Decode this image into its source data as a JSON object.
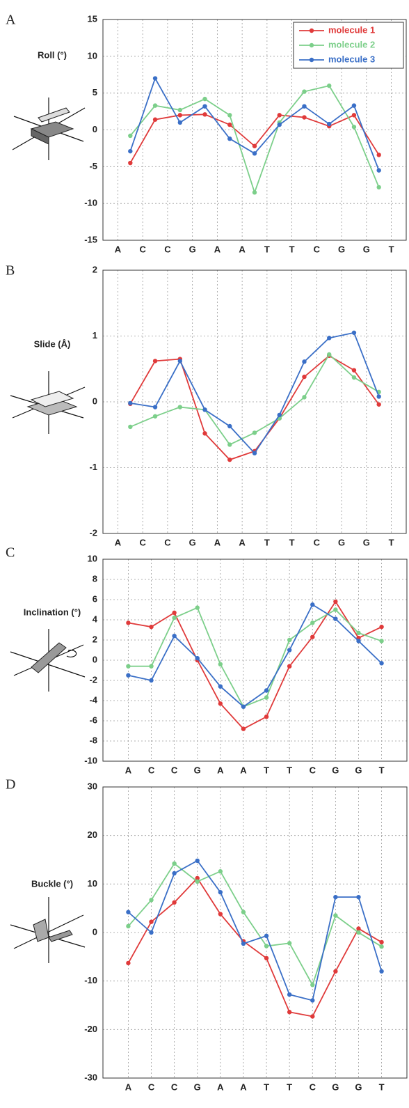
{
  "chart_data": [
    {
      "type": "line",
      "panel_label": "A",
      "ylabel": "Roll (°)",
      "x": [
        0.5,
        1.5,
        2.5,
        3.5,
        4.5,
        5.5,
        6.5,
        7.5,
        8.5,
        9.5,
        10.5
      ],
      "xticks": [
        {
          "value": 0,
          "label": "A"
        },
        {
          "value": 1,
          "label": "C"
        },
        {
          "value": 2,
          "label": "C"
        },
        {
          "value": 3,
          "label": "G"
        },
        {
          "value": 4,
          "label": "A"
        },
        {
          "value": 5,
          "label": "A"
        },
        {
          "value": 6,
          "label": "T"
        },
        {
          "value": 7,
          "label": "T"
        },
        {
          "value": 8,
          "label": "C"
        },
        {
          "value": 9,
          "label": "G"
        },
        {
          "value": 10,
          "label": "G"
        },
        {
          "value": 11,
          "label": "T"
        }
      ],
      "xlim": [
        -0.6,
        11.6
      ],
      "ylim": [
        -15,
        15
      ],
      "yticks": [
        -15,
        -10,
        -5,
        0,
        5,
        10,
        15
      ],
      "grid": true,
      "legend": "upper right",
      "series": [
        {
          "name": "molecule 1",
          "color": "#e03a3a",
          "values": [
            -4.5,
            1.4,
            2.0,
            2.1,
            0.7,
            -2.2,
            2.0,
            1.7,
            0.5,
            2.0,
            -3.4
          ]
        },
        {
          "name": "molecule 2",
          "color": "#7ccf8a",
          "values": [
            -0.8,
            3.3,
            2.7,
            4.2,
            2.0,
            -8.5,
            1.0,
            5.2,
            6.0,
            0.4,
            -7.8
          ]
        },
        {
          "name": "molecule 3",
          "color": "#3a6fc7",
          "values": [
            -2.9,
            7.0,
            1.0,
            3.2,
            -1.2,
            -3.2,
            0.7,
            3.2,
            0.8,
            3.3,
            -5.5
          ]
        }
      ]
    },
    {
      "type": "line",
      "panel_label": "B",
      "ylabel": "Slide (Å)",
      "x": [
        0.5,
        1.5,
        2.5,
        3.5,
        4.5,
        5.5,
        6.5,
        7.5,
        8.5,
        9.5,
        10.5
      ],
      "xticks": [
        {
          "value": 0,
          "label": "A"
        },
        {
          "value": 1,
          "label": "C"
        },
        {
          "value": 2,
          "label": "C"
        },
        {
          "value": 3,
          "label": "G"
        },
        {
          "value": 4,
          "label": "A"
        },
        {
          "value": 5,
          "label": "A"
        },
        {
          "value": 6,
          "label": "T"
        },
        {
          "value": 7,
          "label": "T"
        },
        {
          "value": 8,
          "label": "C"
        },
        {
          "value": 9,
          "label": "G"
        },
        {
          "value": 10,
          "label": "G"
        },
        {
          "value": 11,
          "label": "T"
        }
      ],
      "xlim": [
        -0.6,
        11.6
      ],
      "ylim": [
        -2,
        2
      ],
      "yticks": [
        -2,
        -1,
        0,
        1,
        2
      ],
      "grid": true,
      "series": [
        {
          "color": "#e03a3a",
          "values": [
            -0.03,
            0.62,
            0.65,
            -0.48,
            -0.88,
            -0.75,
            -0.25,
            0.38,
            0.7,
            0.48,
            -0.04
          ]
        },
        {
          "color": "#7ccf8a",
          "values": [
            -0.38,
            -0.22,
            -0.08,
            -0.12,
            -0.65,
            -0.47,
            -0.25,
            0.07,
            0.72,
            0.37,
            0.15
          ]
        },
        {
          "color": "#3a6fc7",
          "values": [
            -0.02,
            -0.08,
            0.62,
            -0.12,
            -0.37,
            -0.78,
            -0.2,
            0.61,
            0.97,
            1.05,
            0.08
          ]
        }
      ]
    },
    {
      "type": "line",
      "panel_label": "C",
      "ylabel": "Inclination (°)",
      "x": [
        0,
        1,
        2,
        3,
        4,
        5,
        6,
        7,
        8,
        9,
        10,
        11
      ],
      "xticks": [
        {
          "value": 0,
          "label": "A"
        },
        {
          "value": 1,
          "label": "C"
        },
        {
          "value": 2,
          "label": "C"
        },
        {
          "value": 3,
          "label": "G"
        },
        {
          "value": 4,
          "label": "A"
        },
        {
          "value": 5,
          "label": "A"
        },
        {
          "value": 6,
          "label": "T"
        },
        {
          "value": 7,
          "label": "T"
        },
        {
          "value": 8,
          "label": "C"
        },
        {
          "value": 9,
          "label": "G"
        },
        {
          "value": 10,
          "label": "G"
        },
        {
          "value": 11,
          "label": "T"
        }
      ],
      "xlim": [
        -1.1,
        12.1
      ],
      "ylim": [
        -10,
        10
      ],
      "yticks": [
        -10,
        -8,
        -6,
        -4,
        -2,
        0,
        2,
        4,
        6,
        8,
        10
      ],
      "grid": true,
      "series": [
        {
          "color": "#e03a3a",
          "values": [
            3.7,
            3.3,
            4.7,
            0.0,
            -4.3,
            -6.8,
            -5.6,
            -0.6,
            2.3,
            5.8,
            2.2,
            3.3
          ]
        },
        {
          "color": "#7ccf8a",
          "values": [
            -0.6,
            -0.6,
            4.2,
            5.2,
            -0.4,
            -4.6,
            -3.7,
            2.0,
            3.7,
            5.0,
            2.7,
            1.9
          ]
        },
        {
          "color": "#3a6fc7",
          "values": [
            -1.5,
            -2.0,
            2.4,
            0.2,
            -2.6,
            -4.6,
            -3.0,
            1.0,
            5.5,
            4.1,
            1.9,
            -0.3
          ]
        }
      ]
    },
    {
      "type": "line",
      "panel_label": "D",
      "ylabel": "Buckle (°)",
      "x": [
        0,
        1,
        2,
        3,
        4,
        5,
        6,
        7,
        8,
        9,
        10,
        11
      ],
      "xticks": [
        {
          "value": 0,
          "label": "A"
        },
        {
          "value": 1,
          "label": "C"
        },
        {
          "value": 2,
          "label": "C"
        },
        {
          "value": 3,
          "label": "G"
        },
        {
          "value": 4,
          "label": "A"
        },
        {
          "value": 5,
          "label": "A"
        },
        {
          "value": 6,
          "label": "T"
        },
        {
          "value": 7,
          "label": "T"
        },
        {
          "value": 8,
          "label": "C"
        },
        {
          "value": 9,
          "label": "G"
        },
        {
          "value": 10,
          "label": "G"
        },
        {
          "value": 11,
          "label": "T"
        }
      ],
      "xlim": [
        -1.1,
        12.1
      ],
      "ylim": [
        -30,
        30
      ],
      "yticks": [
        -30,
        -20,
        -10,
        0,
        10,
        20,
        30
      ],
      "grid": true,
      "series": [
        {
          "color": "#e03a3a",
          "values": [
            -6.3,
            2.2,
            6.2,
            11.2,
            3.8,
            -1.8,
            -5.3,
            -16.4,
            -17.3,
            -8.0,
            0.8,
            -2.0
          ]
        },
        {
          "color": "#7ccf8a",
          "values": [
            1.3,
            6.7,
            14.2,
            10.5,
            12.6,
            4.2,
            -2.8,
            -2.2,
            -10.8,
            3.5,
            0.0,
            -2.9
          ]
        },
        {
          "color": "#3a6fc7",
          "values": [
            4.2,
            0.0,
            12.2,
            14.8,
            8.3,
            -2.3,
            -0.7,
            -12.8,
            -14.0,
            7.3,
            7.3,
            -8.0
          ]
        }
      ]
    }
  ]
}
